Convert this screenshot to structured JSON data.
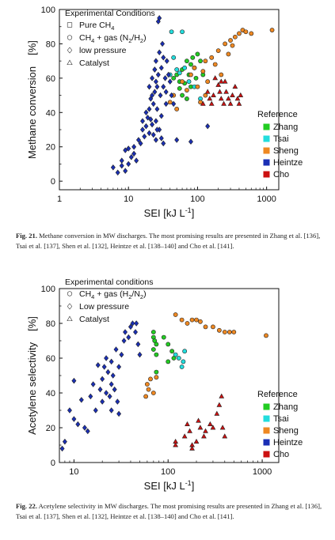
{
  "colors": {
    "Zhang": "#22cc22",
    "Tsai": "#22dddd",
    "Sheng": "#ee8822",
    "Heintze": "#1a2fb5",
    "Cho": "#cc1111"
  },
  "chart_data": [
    {
      "type": "scatter",
      "title": "",
      "xlabel": "SEI  [kJ L",
      "xlabel_sup": "-1",
      "xlabel_close": "]",
      "ylabel_main": "Methane conversion",
      "ylabel_unit": "[%]",
      "xscale": "log",
      "xlim": [
        1,
        1500
      ],
      "ylim": [
        -5,
        100
      ],
      "xticks": [
        1,
        10,
        100,
        1000
      ],
      "xtick_labels": [
        "1",
        "10",
        "100",
        "1000"
      ],
      "yticks": [
        0,
        20,
        40,
        60,
        80,
        100
      ],
      "ytick_labels": [
        "0",
        "20",
        "40",
        "60",
        "80",
        "100"
      ],
      "grid": false,
      "conditions_title": "Experimental Conditions",
      "conditions": [
        {
          "symbol": "square",
          "text": "Pure CH",
          "sub": "4",
          "rest": ""
        },
        {
          "symbol": "circle",
          "text": "CH",
          "sub": "4",
          "rest": " + gas (N",
          "sub2": "2",
          "rest2": "/H",
          "sub3": "2",
          "rest3": ")"
        },
        {
          "symbol": "diamond",
          "text": "low pressure",
          "sub": "",
          "rest": ""
        },
        {
          "symbol": "triangle",
          "text": "Catalyst",
          "sub": "",
          "rest": ""
        }
      ],
      "legend_title": "Reference",
      "legend_placement": "bottom-right",
      "legend": [
        "Zhang",
        "Tsai",
        "Sheng",
        "Heintze",
        "Cho"
      ],
      "series": [
        {
          "name": "Zhang",
          "marker": "circle",
          "points": [
            [
              45,
              60
            ],
            [
              50,
              62
            ],
            [
              55,
              58
            ],
            [
              60,
              65
            ],
            [
              65,
              57
            ],
            [
              70,
              70
            ],
            [
              75,
              62
            ],
            [
              80,
              68
            ],
            [
              85,
              72
            ],
            [
              90,
              66
            ],
            [
              95,
              60
            ],
            [
              100,
              74
            ],
            [
              110,
              70
            ],
            [
              120,
              62
            ],
            [
              60,
              50
            ],
            [
              55,
              54
            ],
            [
              70,
              48
            ],
            [
              80,
              55
            ]
          ]
        },
        {
          "name": "Tsai",
          "marker": "circle",
          "points": [
            [
              42,
              87
            ],
            [
              60,
              87
            ],
            [
              45,
              72
            ],
            [
              50,
              65
            ],
            [
              65,
              66
            ],
            [
              40,
              62
            ],
            [
              55,
              63
            ],
            [
              75,
              58
            ],
            [
              90,
              55
            ],
            [
              110,
              48
            ]
          ]
        },
        {
          "name": "Sheng",
          "marker": "circle",
          "points": [
            [
              40,
              46
            ],
            [
              45,
              50
            ],
            [
              50,
              42
            ],
            [
              60,
              58
            ],
            [
              70,
              53
            ],
            [
              80,
              62
            ],
            [
              90,
              66
            ],
            [
              100,
              55
            ],
            [
              120,
              64
            ],
            [
              130,
              70
            ],
            [
              140,
              58
            ],
            [
              160,
              72
            ],
            [
              180,
              68
            ],
            [
              200,
              76
            ],
            [
              220,
              62
            ],
            [
              250,
              80
            ],
            [
              280,
              74
            ],
            [
              300,
              82
            ],
            [
              320,
              79
            ],
            [
              350,
              84
            ],
            [
              400,
              86
            ],
            [
              450,
              88
            ],
            [
              500,
              87
            ],
            [
              600,
              86
            ],
            [
              1200,
              88
            ],
            [
              130,
              50
            ],
            [
              110,
              46
            ]
          ]
        },
        {
          "name": "Heintze",
          "marker": "diamond",
          "points": [
            [
              6,
              8
            ],
            [
              7,
              5
            ],
            [
              8,
              9
            ],
            [
              8,
              12
            ],
            [
              9,
              6
            ],
            [
              9,
              18
            ],
            [
              10,
              19
            ],
            [
              10,
              10
            ],
            [
              11,
              14
            ],
            [
              12,
              16
            ],
            [
              12,
              20
            ],
            [
              13,
              12
            ],
            [
              14,
              24
            ],
            [
              15,
              22
            ],
            [
              16,
              30
            ],
            [
              16,
              35
            ],
            [
              17,
              26
            ],
            [
              18,
              32
            ],
            [
              18,
              40
            ],
            [
              19,
              37
            ],
            [
              20,
              42
            ],
            [
              20,
              55
            ],
            [
              21,
              48
            ],
            [
              22,
              50
            ],
            [
              22,
              60
            ],
            [
              23,
              45
            ],
            [
              24,
              52
            ],
            [
              24,
              65
            ],
            [
              25,
              58
            ],
            [
              25,
              70
            ],
            [
              26,
              55
            ],
            [
              26,
              42
            ],
            [
              27,
              62
            ],
            [
              27,
              93
            ],
            [
              28,
              95
            ],
            [
              28,
              75
            ],
            [
              29,
              50
            ],
            [
              30,
              38
            ],
            [
              30,
              66
            ],
            [
              31,
              80
            ],
            [
              32,
              72
            ],
            [
              32,
              55
            ],
            [
              34,
              60
            ],
            [
              35,
              52
            ],
            [
              36,
              70
            ],
            [
              38,
              62
            ],
            [
              40,
              58
            ],
            [
              42,
              50
            ],
            [
              25,
              35
            ],
            [
              28,
              30
            ],
            [
              30,
              25
            ],
            [
              20,
              28
            ],
            [
              22,
              33
            ],
            [
              25,
              24
            ],
            [
              32,
              22
            ],
            [
              50,
              24
            ],
            [
              80,
              23
            ],
            [
              140,
              32
            ],
            [
              24,
              65
            ],
            [
              26,
              30
            ],
            [
              21,
              36
            ],
            [
              23,
              27
            ],
            [
              35,
              45
            ],
            [
              45,
              45
            ]
          ]
        },
        {
          "name": "Cho",
          "marker": "triangle",
          "points": [
            [
              120,
              45
            ],
            [
              140,
              52
            ],
            [
              150,
              48
            ],
            [
              170,
              50
            ],
            [
              180,
              60
            ],
            [
              200,
              56
            ],
            [
              210,
              52
            ],
            [
              220,
              48
            ],
            [
              240,
              45
            ],
            [
              250,
              58
            ],
            [
              260,
              52
            ],
            [
              280,
              48
            ],
            [
              300,
              45
            ],
            [
              320,
              50
            ],
            [
              350,
              55
            ],
            [
              380,
              48
            ],
            [
              400,
              45
            ],
            [
              420,
              50
            ],
            [
              220,
              58
            ],
            [
              160,
              45
            ]
          ]
        }
      ]
    },
    {
      "type": "scatter",
      "title": "",
      "xlabel": "SEI  [kJ L",
      "xlabel_sup": "-1",
      "xlabel_close": "]",
      "ylabel_main": "Acetylene selectivity",
      "ylabel_unit": "[%]",
      "xscale": "log",
      "xlim": [
        7,
        1500
      ],
      "ylim": [
        0,
        100
      ],
      "xticks": [
        10,
        100,
        1000
      ],
      "xtick_labels": [
        "10",
        "100",
        "1000"
      ],
      "yticks": [
        0,
        20,
        40,
        60,
        80,
        100
      ],
      "ytick_labels": [
        "0",
        "20",
        "40",
        "60",
        "80",
        "100"
      ],
      "grid": false,
      "conditions_title": "Experimental conditions",
      "conditions": [
        {
          "symbol": "circle",
          "text": "CH",
          "sub": "4",
          "rest": " + gas (H",
          "sub2": "2",
          "rest2": "/N",
          "sub3": "2",
          "rest3": ")"
        },
        {
          "symbol": "diamond",
          "text": "Low pressure",
          "sub": "",
          "rest": ""
        },
        {
          "symbol": "triangle",
          "text": "Catalyst",
          "sub": "",
          "rest": ""
        }
      ],
      "legend_title": "Reference",
      "legend_placement": "bottom-right",
      "legend": [
        "Zhang",
        "Tsai",
        "Sheng",
        "Heintze",
        "Cho"
      ],
      "series": [
        {
          "name": "Zhang",
          "marker": "circle",
          "points": [
            [
              70,
              75
            ],
            [
              70,
              72
            ],
            [
              72,
              70
            ],
            [
              75,
              68
            ],
            [
              70,
              65
            ],
            [
              75,
              62
            ],
            [
              90,
              72
            ],
            [
              100,
              68
            ],
            [
              110,
              64
            ],
            [
              115,
              60
            ],
            [
              100,
              58
            ],
            [
              75,
              52
            ]
          ]
        },
        {
          "name": "Tsai",
          "marker": "circle",
          "points": [
            [
              120,
              62
            ],
            [
              130,
              60
            ],
            [
              140,
              55
            ],
            [
              150,
              64
            ],
            [
              145,
              58
            ]
          ]
        },
        {
          "name": "Sheng",
          "marker": "circle",
          "points": [
            [
              120,
              85
            ],
            [
              140,
              82
            ],
            [
              160,
              80
            ],
            [
              180,
              82
            ],
            [
              200,
              82
            ],
            [
              220,
              81
            ],
            [
              250,
              78
            ],
            [
              300,
              78
            ],
            [
              350,
              76
            ],
            [
              400,
              75
            ],
            [
              450,
              75
            ],
            [
              500,
              75
            ],
            [
              1100,
              73
            ],
            [
              60,
              45
            ],
            [
              62,
              42
            ],
            [
              58,
              38
            ],
            [
              65,
              48
            ],
            [
              75,
              49
            ],
            [
              70,
              40
            ]
          ]
        },
        {
          "name": "Heintze",
          "marker": "diamond",
          "points": [
            [
              7.5,
              8
            ],
            [
              8,
              12
            ],
            [
              9,
              30
            ],
            [
              10,
              25
            ],
            [
              10,
              47
            ],
            [
              11,
              22
            ],
            [
              12,
              36
            ],
            [
              13,
              20
            ],
            [
              14,
              18
            ],
            [
              15,
              38
            ],
            [
              16,
              45
            ],
            [
              17,
              30
            ],
            [
              18,
              56
            ],
            [
              19,
              42
            ],
            [
              20,
              48
            ],
            [
              21,
              55
            ],
            [
              22,
              60
            ],
            [
              23,
              52
            ],
            [
              24,
              38
            ],
            [
              25,
              45
            ],
            [
              25,
              58
            ],
            [
              26,
              50
            ],
            [
              27,
              42
            ],
            [
              28,
              65
            ],
            [
              29,
              35
            ],
            [
              30,
              55
            ],
            [
              32,
              62
            ],
            [
              34,
              70
            ],
            [
              35,
              75
            ],
            [
              38,
              72
            ],
            [
              40,
              78
            ],
            [
              42,
              80
            ],
            [
              45,
              75
            ],
            [
              48,
              68
            ],
            [
              50,
              62
            ],
            [
              46,
              80
            ],
            [
              20,
              35
            ],
            [
              25,
              30
            ],
            [
              30,
              28
            ],
            [
              22,
              40
            ]
          ]
        },
        {
          "name": "Cho",
          "marker": "triangle",
          "points": [
            [
              120,
              10
            ],
            [
              120,
              12
            ],
            [
              150,
              15
            ],
            [
              160,
              22
            ],
            [
              170,
              18
            ],
            [
              180,
              10
            ],
            [
              200,
              12
            ],
            [
              220,
              20
            ],
            [
              240,
              15
            ],
            [
              250,
              18
            ],
            [
              280,
              22
            ],
            [
              300,
              20
            ],
            [
              330,
              28
            ],
            [
              350,
              33
            ],
            [
              370,
              38
            ],
            [
              380,
              20
            ],
            [
              400,
              15
            ],
            [
              180,
              8
            ],
            [
              210,
              24
            ]
          ]
        }
      ]
    }
  ],
  "captions": [
    {
      "label": "Fig. 21.",
      "text": " Methane conversion in MW discharges. The most promising results are presented in Zhang et al. [136], Tsai et al. [137], Shen et al. [132], Heintze et al. [138–140] and Cho et al. [141]."
    },
    {
      "label": "Fig. 22.",
      "text": " Acetylene selectivity in MW discharges. The most promising results are presented in Zhang et al. [136], Tsai et al. [137], Shen et al. [132], Heintze et al. [138–140] and Cho et al. [141]."
    }
  ]
}
